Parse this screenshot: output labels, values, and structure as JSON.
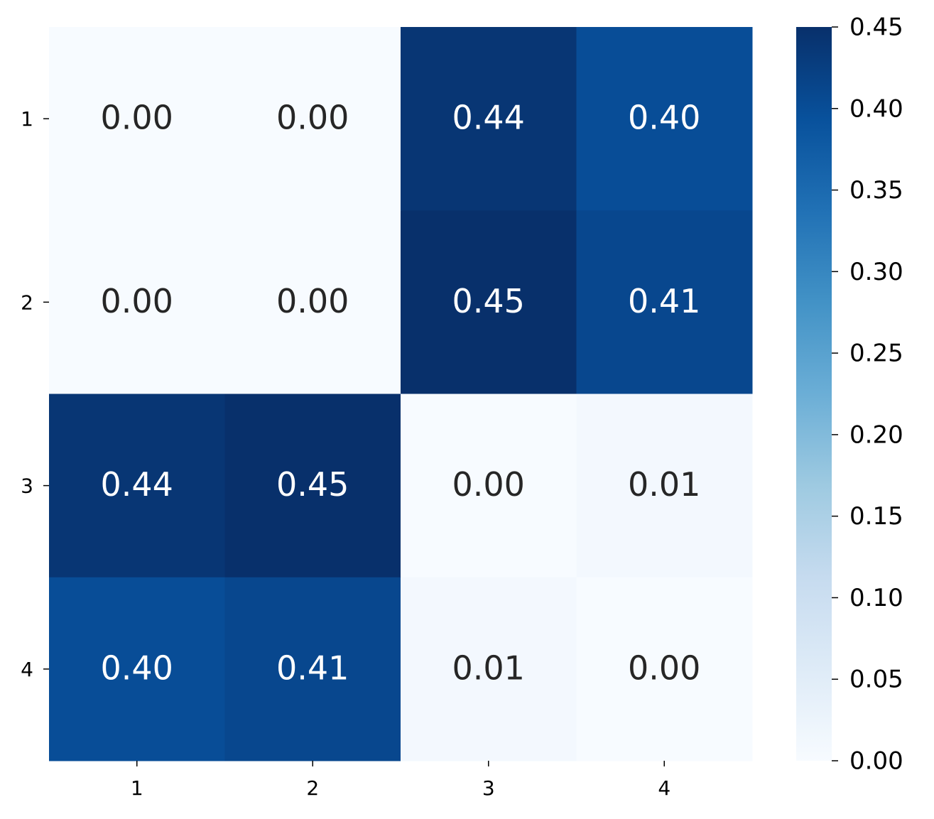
{
  "chart_data": {
    "type": "heatmap",
    "x_categories": [
      "1",
      "2",
      "3",
      "4"
    ],
    "y_categories": [
      "1",
      "2",
      "3",
      "4"
    ],
    "values": [
      [
        0.0,
        0.0,
        0.44,
        0.4
      ],
      [
        0.0,
        0.0,
        0.45,
        0.41
      ],
      [
        0.44,
        0.45,
        0.0,
        0.01
      ],
      [
        0.4,
        0.41,
        0.01,
        0.0
      ]
    ],
    "value_labels": [
      [
        "0.00",
        "0.00",
        "0.44",
        "0.40"
      ],
      [
        "0.00",
        "0.00",
        "0.45",
        "0.41"
      ],
      [
        "0.44",
        "0.45",
        "0.00",
        "0.01"
      ],
      [
        "0.40",
        "0.41",
        "0.01",
        "0.00"
      ]
    ],
    "colormap": [
      "#f7fbff",
      "#deebf7",
      "#c6dbef",
      "#9ecae1",
      "#6baed6",
      "#4292c6",
      "#2171b5",
      "#08519c",
      "#08306b"
    ],
    "clim": [
      0,
      0.45
    ],
    "cticks": [
      {
        "value": 0,
        "label": "0.00"
      },
      0.05,
      {
        "value": 0.1,
        "label": "0.10"
      },
      0.15,
      {
        "value": 0.2,
        "label": "0.20"
      },
      0.25,
      {
        "value": 0.3,
        "label": "0.30"
      },
      0.35,
      {
        "value": 0.4,
        "label": "0.40"
      },
      0.45
    ]
  }
}
